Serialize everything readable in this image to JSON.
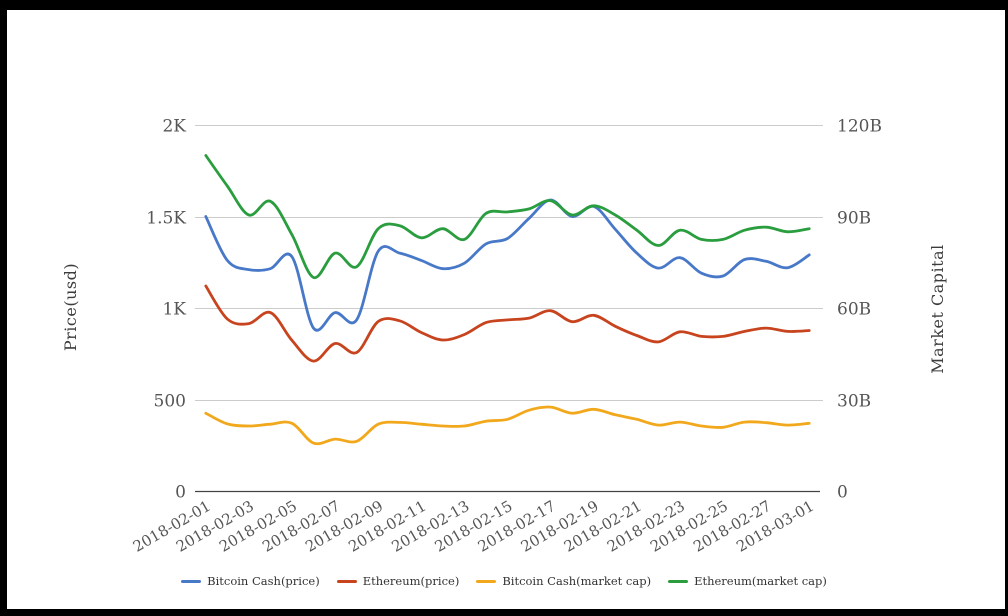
{
  "page": {
    "background": "#ffffff",
    "frame_color": "#000000"
  },
  "chart_data": {
    "type": "line",
    "smooth": true,
    "grid": true,
    "legend_position": "bottom",
    "x_label_rotation_deg": 30,
    "x_tick_step": 2,
    "x_categories": [
      "2018-02-01",
      "2018-02-02",
      "2018-02-03",
      "2018-02-04",
      "2018-02-05",
      "2018-02-06",
      "2018-02-07",
      "2018-02-08",
      "2018-02-09",
      "2018-02-10",
      "2018-02-11",
      "2018-02-12",
      "2018-02-13",
      "2018-02-14",
      "2018-02-15",
      "2018-02-16",
      "2018-02-17",
      "2018-02-18",
      "2018-02-19",
      "2018-02-20",
      "2018-02-21",
      "2018-02-22",
      "2018-02-23",
      "2018-02-24",
      "2018-02-25",
      "2018-02-26",
      "2018-02-27",
      "2018-02-28",
      "2018-03-01"
    ],
    "left_axis": {
      "title": "Price(usd)",
      "range": [
        0,
        2000
      ],
      "tick_values": [
        0,
        500,
        1000,
        1500,
        2000
      ],
      "tick_labels": [
        "0",
        "500",
        "1K",
        "1.5K",
        "2K"
      ]
    },
    "right_axis": {
      "title": "Market Capital",
      "unit": "billions USD",
      "range": [
        0,
        120
      ],
      "tick_values": [
        0,
        30,
        60,
        90,
        120
      ],
      "tick_labels": [
        "0",
        "30B",
        "60B",
        "90B",
        "120B"
      ]
    },
    "series": [
      {
        "name": "Bitcoin Cash(price)",
        "axis": "left",
        "color": "#4878c8",
        "values": [
          1500,
          1260,
          1210,
          1215,
          1280,
          890,
          975,
          935,
          1310,
          1300,
          1260,
          1215,
          1245,
          1350,
          1380,
          1490,
          1590,
          1500,
          1555,
          1430,
          1300,
          1218,
          1275,
          1190,
          1175,
          1265,
          1255,
          1220,
          1290
        ]
      },
      {
        "name": "Ethereum(price)",
        "axis": "left",
        "color": "#c7441e",
        "values": [
          1120,
          940,
          915,
          975,
          823,
          710,
          806,
          757,
          926,
          930,
          866,
          825,
          855,
          920,
          935,
          945,
          985,
          925,
          960,
          900,
          850,
          815,
          870,
          845,
          845,
          872,
          890,
          872,
          877
        ]
      },
      {
        "name": "Bitcoin Cash(market cap)",
        "axis": "right",
        "color": "#f2a81d",
        "values": [
          25.5,
          22.0,
          21.3,
          21.9,
          22.2,
          15.7,
          17.0,
          16.3,
          21.9,
          22.5,
          21.9,
          21.3,
          21.3,
          22.9,
          23.5,
          26.5,
          27.5,
          25.5,
          26.8,
          25.0,
          23.5,
          21.6,
          22.6,
          21.3,
          20.9,
          22.6,
          22.4,
          21.6,
          22.2
        ]
      },
      {
        "name": "Ethereum(market cap)",
        "axis": "right",
        "color": "#2a9d3f",
        "values": [
          110,
          100,
          90.5,
          95,
          84,
          70,
          78,
          73.5,
          86,
          87,
          83,
          86,
          82.5,
          91,
          91.5,
          92.5,
          95.2,
          90.5,
          93.5,
          90.5,
          85.5,
          80.5,
          85.5,
          82.5,
          82.5,
          85.5,
          86.5,
          85,
          86
        ]
      }
    ]
  }
}
